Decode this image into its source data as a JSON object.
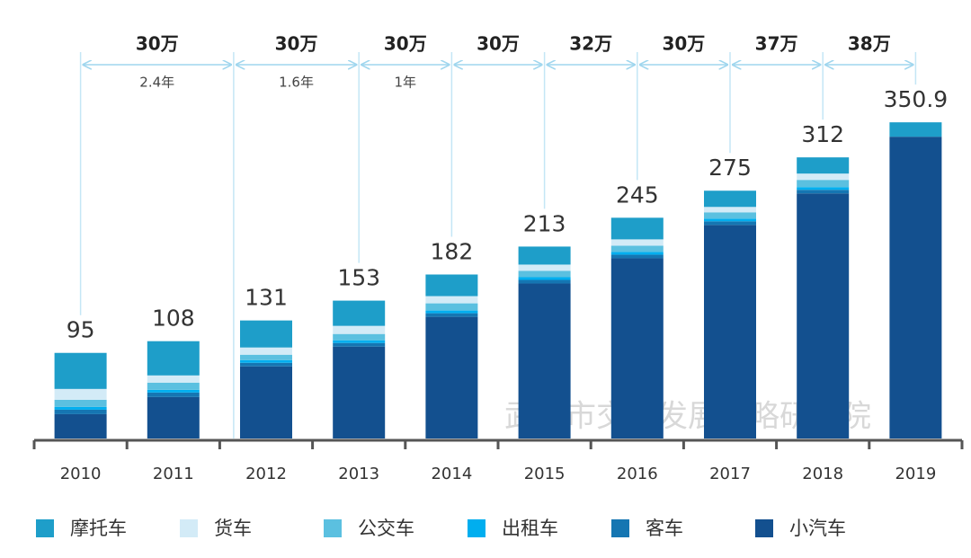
{
  "chart_data": {
    "type": "stacked-bar",
    "categories": [
      "2010",
      "2011",
      "2012",
      "2013",
      "2014",
      "2015",
      "2016",
      "2017",
      "2018",
      "2019"
    ],
    "totals": [
      95,
      108,
      131,
      153,
      182,
      213,
      245,
      275,
      312,
      350.9
    ],
    "series": [
      {
        "name": "摩托车",
        "color": "#1e9ec9",
        "values": [
          40,
          38,
          30,
          28,
          24,
          20,
          24,
          18,
          18,
          16
        ]
      },
      {
        "name": "货车",
        "color": "#d3ebf7",
        "values": [
          12,
          8,
          8,
          9,
          8,
          7,
          7,
          6,
          7,
          0
        ]
      },
      {
        "name": "公交车",
        "color": "#5bc0e0",
        "values": [
          8,
          8,
          6,
          7,
          8,
          7,
          7,
          7,
          8,
          0
        ]
      },
      {
        "name": "出租车",
        "color": "#00aeef",
        "values": [
          3,
          3,
          3,
          3,
          3,
          3,
          3,
          3,
          3,
          0
        ]
      },
      {
        "name": "客车",
        "color": "#1576b2",
        "values": [
          5,
          5,
          4,
          4,
          4,
          4,
          4,
          4,
          4,
          0
        ]
      },
      {
        "name": "小汽车",
        "color": "#13508f",
        "values": [
          27,
          46,
          80,
          102,
          135,
          172,
          200,
          237,
          272,
          334.9
        ]
      }
    ],
    "ylim": [
      0,
      360
    ],
    "increments": [
      {
        "label": "30万",
        "sub": "2.4年"
      },
      {
        "label": "30万",
        "sub": "1.6年"
      },
      {
        "label": "30万",
        "sub": "1年"
      },
      {
        "label": "30万"
      },
      {
        "label": "32万"
      },
      {
        "label": "30万"
      },
      {
        "label": "37万"
      },
      {
        "label": "38万"
      }
    ],
    "watermark": "武汉市交通发展战略研究院"
  }
}
